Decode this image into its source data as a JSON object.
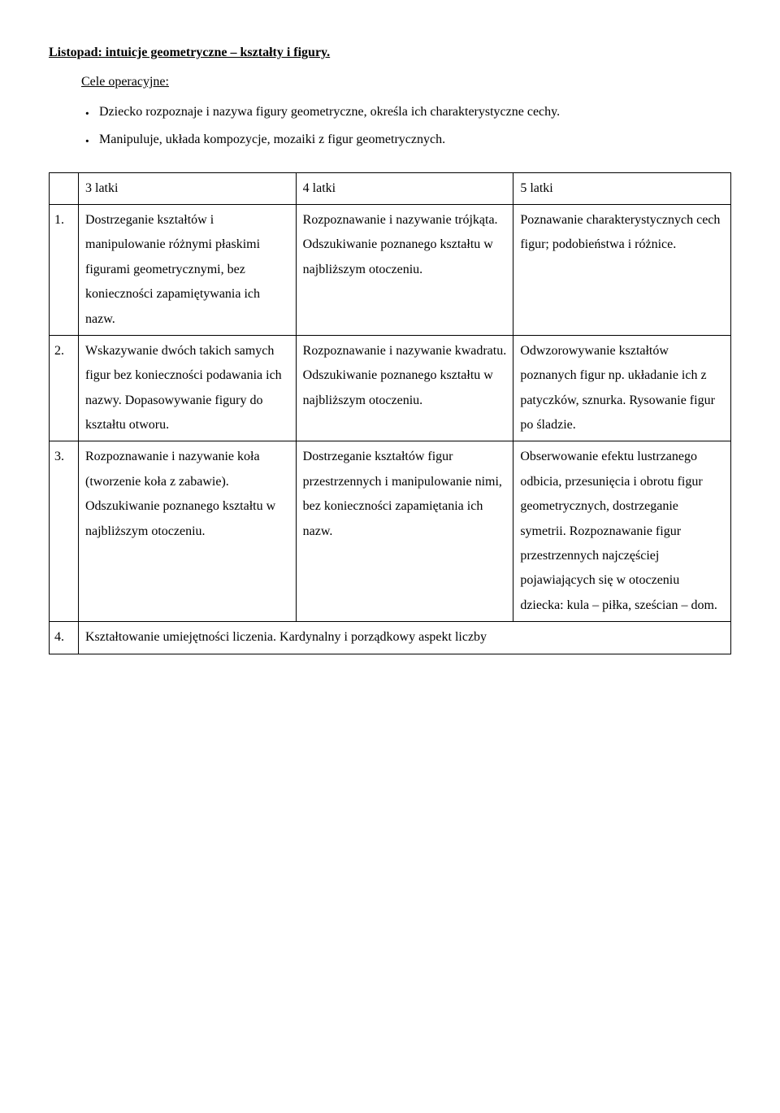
{
  "title": "Listopad: intuicje geometryczne – kształty i figury.",
  "subtitle": "Cele operacyjne:",
  "bullets": [
    "Dziecko rozpoznaje i nazywa figury geometryczne, określa ich charakterystyczne cechy.",
    "Manipuluje, układa kompozycje, mozaiki z figur geometrycznych."
  ],
  "table": {
    "headers": {
      "col1": "3 latki",
      "col2": "4 latki",
      "col3": "5 latki"
    },
    "rows": [
      {
        "num": "1.",
        "col1": "Dostrzeganie kształtów i manipulowanie różnymi płaskimi figurami geometrycznymi, bez konieczności zapamiętywania ich nazw.",
        "col2": "Rozpoznawanie i nazywanie trójkąta. Odszukiwanie poznanego kształtu w najbliższym otoczeniu.",
        "col3": "Poznawanie charakterystycznych cech figur; podobieństwa i różnice."
      },
      {
        "num": "2.",
        "col1": "Wskazywanie dwóch takich samych figur bez konieczności podawania ich nazwy. Dopasowywanie figury do kształtu otworu.",
        "col2": "Rozpoznawanie i nazywanie kwadratu. Odszukiwanie poznanego kształtu w najbliższym otoczeniu.",
        "col3": "Odwzorowywanie kształtów poznanych figur np. układanie ich z patyczków, sznurka. Rysowanie figur po śladzie."
      },
      {
        "num": "3.",
        "col1": "Rozpoznawanie i nazywanie koła (tworzenie koła z zabawie). Odszukiwanie poznanego kształtu w najbliższym otoczeniu.",
        "col2": "Dostrzeganie kształtów figur przestrzennych i manipulowanie nimi, bez konieczności zapamiętania ich nazw.",
        "col3": "Obserwowanie efektu lustrzanego odbicia, przesunięcia i obrotu figur geometrycznych, dostrzeganie symetrii. Rozpoznawanie figur przestrzennych najczęściej pojawiających się w otoczeniu dziecka: kula – piłka, sześcian – dom."
      },
      {
        "num": "4.",
        "merged": "Kształtowanie umiejętności liczenia. Kardynalny i porządkowy aspekt liczby"
      }
    ]
  }
}
